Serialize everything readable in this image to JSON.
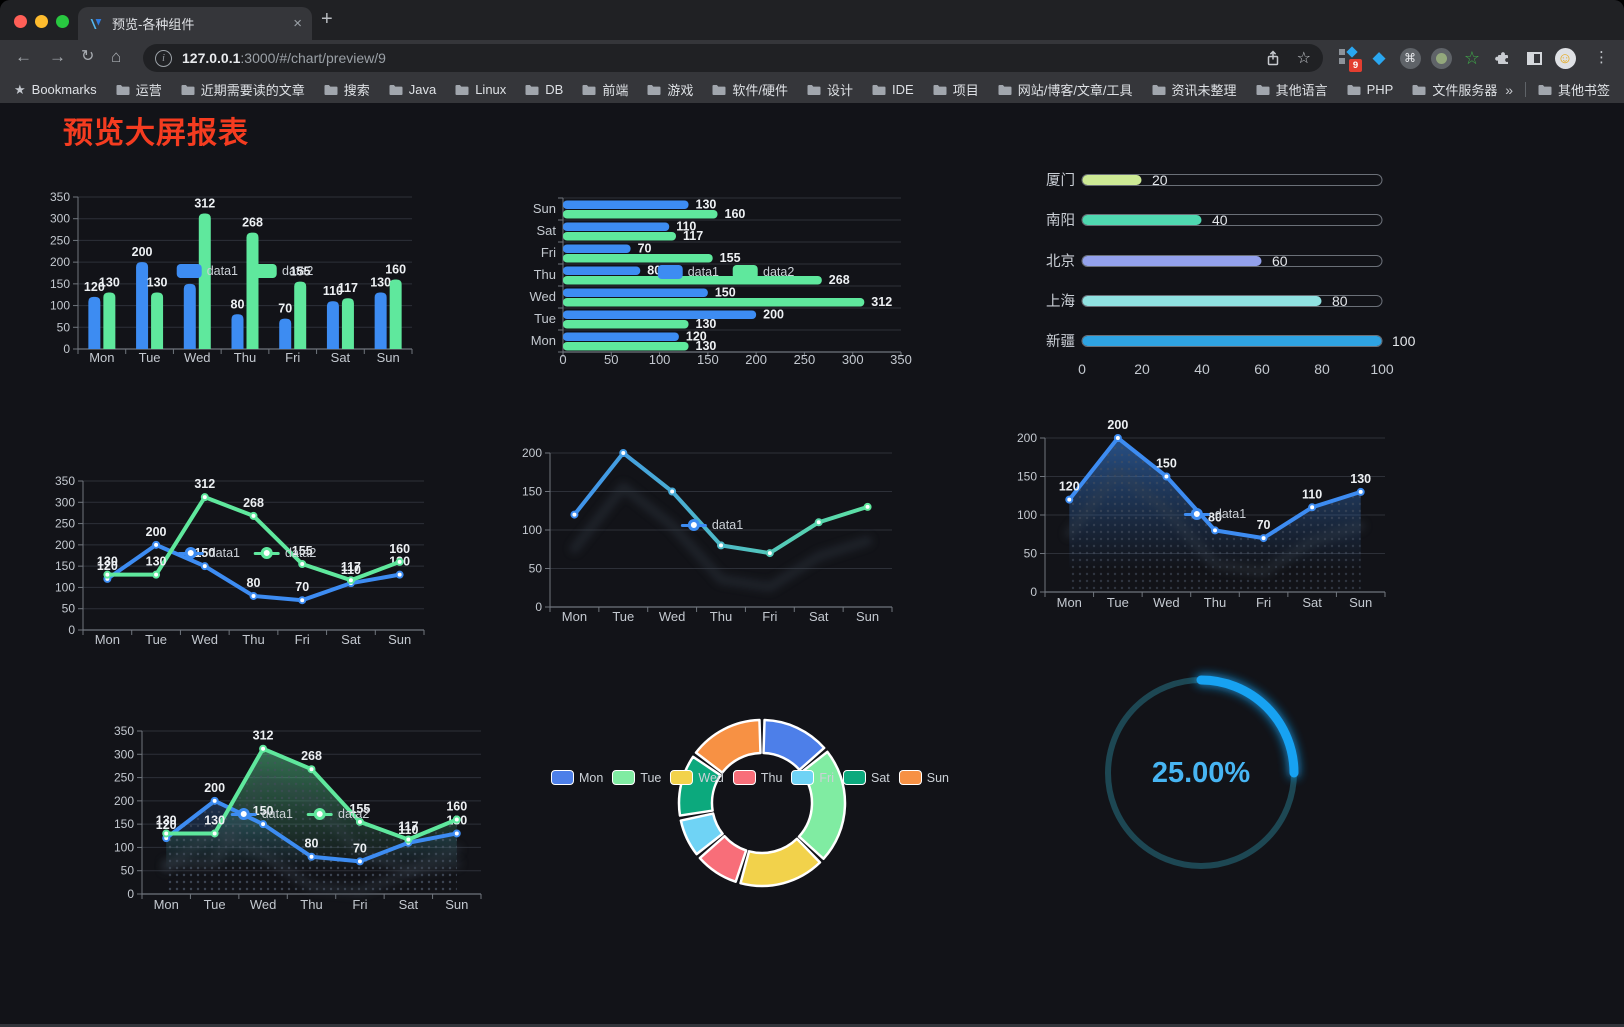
{
  "browser": {
    "tab": {
      "title": "预览-各种组件"
    },
    "icons": {
      "close_tab": "×",
      "new_tab": "+",
      "back": "←",
      "forward": "→",
      "reload": "↻",
      "home": "⌂",
      "info": "i",
      "star": "☆",
      "menu": "⋮",
      "gem": "◆",
      "command": "⌘",
      "smiley": "☺",
      "bookmarks_star": "★",
      "overflow": "»"
    },
    "address": {
      "host": "127.0.0.1",
      "path": ":3000/#/chart/preview/9"
    },
    "actions": {
      "extensions_badge": "9"
    },
    "bookmarks": {
      "label": "Bookmarks",
      "folders": [
        "运营",
        "近期需要读的文章",
        "搜索",
        "Java",
        "Linux",
        "DB",
        "前端",
        "游戏",
        "软件/硬件",
        "设计",
        "IDE",
        "项目",
        "网站/博客/文章/工具",
        "资讯未整理",
        "其他语言",
        "PHP",
        "文件服务器"
      ],
      "other_label": "其他书签"
    }
  },
  "page": {
    "title": "预览大屏报表",
    "title_color": "#f53c20",
    "background": "#121318"
  },
  "palette": {
    "data1": "#3d8cf2",
    "data2": "#5fe89d"
  },
  "chart_data": [
    {
      "id": "grouped-bar",
      "type": "bar",
      "legend_position": "top",
      "categories": [
        "Mon",
        "Tue",
        "Wed",
        "Thu",
        "Fri",
        "Sat",
        "Sun"
      ],
      "series": [
        {
          "name": "data1",
          "color": "#3d8cf2",
          "values": [
            120,
            200,
            150,
            80,
            70,
            110,
            130
          ]
        },
        {
          "name": "data2",
          "color": "#5fe89d",
          "values": [
            130,
            130,
            312,
            268,
            155,
            117,
            160
          ]
        }
      ],
      "ylim": [
        0,
        350
      ],
      "ytick": 50,
      "labels": true
    },
    {
      "id": "horizontal-bar",
      "type": "bar",
      "orientation": "horizontal",
      "legend_position": "top",
      "categories": [
        "Mon",
        "Tue",
        "Wed",
        "Thu",
        "Fri",
        "Sat",
        "Sun"
      ],
      "series": [
        {
          "name": "data1",
          "color": "#3d8cf2",
          "values": [
            120,
            200,
            150,
            80,
            70,
            110,
            130
          ]
        },
        {
          "name": "data2",
          "color": "#5fe89d",
          "values": [
            130,
            130,
            312,
            268,
            155,
            117,
            160
          ]
        }
      ],
      "xlim": [
        0,
        350
      ],
      "xtick": 50,
      "labels": true
    },
    {
      "id": "city-progress",
      "type": "bar",
      "subtype": "progress-pills",
      "rows": [
        {
          "label": "厦门",
          "value": 20,
          "color": "#cdea95"
        },
        {
          "label": "南阳",
          "value": 40,
          "color": "#4fd8b0"
        },
        {
          "label": "北京",
          "value": 60,
          "color": "#93a1ec"
        },
        {
          "label": "上海",
          "value": 80,
          "color": "#90e2e1"
        },
        {
          "label": "新疆",
          "value": 100,
          "color": "#2ea3e2"
        }
      ],
      "xlim": [
        0,
        100
      ],
      "xticks": [
        0,
        20,
        40,
        60,
        80,
        100
      ]
    },
    {
      "id": "two-line",
      "type": "line",
      "legend_position": "top",
      "categories": [
        "Mon",
        "Tue",
        "Wed",
        "Thu",
        "Fri",
        "Sat",
        "Sun"
      ],
      "series": [
        {
          "name": "data1",
          "color": "#3d8cf2",
          "values": [
            120,
            200,
            150,
            80,
            70,
            110,
            130
          ]
        },
        {
          "name": "data2",
          "color": "#5fe89d",
          "values": [
            130,
            130,
            312,
            268,
            155,
            117,
            160
          ]
        }
      ],
      "ylim": [
        0,
        350
      ],
      "ytick": 50,
      "labels": true
    },
    {
      "id": "gradient-line",
      "type": "line",
      "legend_position": "top",
      "categories": [
        "Mon",
        "Tue",
        "Wed",
        "Thu",
        "Fri",
        "Sat",
        "Sun"
      ],
      "series": [
        {
          "name": "data1",
          "color": "#3d8cf2",
          "gradient": [
            "#3d8cf2",
            "#5fe89d"
          ],
          "values": [
            120,
            200,
            150,
            80,
            70,
            110,
            130
          ]
        }
      ],
      "ylim": [
        0,
        200
      ],
      "ytick": 50,
      "labels": false,
      "shadow": true
    },
    {
      "id": "area-line",
      "type": "area",
      "legend_position": "top",
      "categories": [
        "Mon",
        "Tue",
        "Wed",
        "Thu",
        "Fri",
        "Sat",
        "Sun"
      ],
      "series": [
        {
          "name": "data1",
          "color": "#3d8cf2",
          "values": [
            120,
            200,
            150,
            80,
            70,
            110,
            130
          ]
        }
      ],
      "ylim": [
        0,
        200
      ],
      "ytick": 50,
      "labels": true,
      "shadow": true
    },
    {
      "id": "two-area",
      "type": "area",
      "legend_position": "top",
      "categories": [
        "Mon",
        "Tue",
        "Wed",
        "Thu",
        "Fri",
        "Sat",
        "Sun"
      ],
      "series": [
        {
          "name": "data1",
          "color": "#3d8cf2",
          "values": [
            120,
            200,
            150,
            80,
            70,
            110,
            130
          ]
        },
        {
          "name": "data2",
          "color": "#5fe89d",
          "values": [
            130,
            130,
            312,
            268,
            155,
            117,
            160
          ]
        }
      ],
      "ylim": [
        0,
        350
      ],
      "ytick": 50,
      "labels": true,
      "shadow": true
    },
    {
      "id": "weekday-donut",
      "type": "pie",
      "inner_radius_ratio": 0.6,
      "legend_position": "top",
      "items": [
        {
          "name": "Mon",
          "value": 120,
          "color": "#4d7fe9"
        },
        {
          "name": "Tue",
          "value": 200,
          "color": "#80eca2"
        },
        {
          "name": "Wed",
          "value": 150,
          "color": "#f2d24b"
        },
        {
          "name": "Thu",
          "value": 80,
          "color": "#f86e79"
        },
        {
          "name": "Fri",
          "value": 70,
          "color": "#6fd3f5"
        },
        {
          "name": "Sat",
          "value": 110,
          "color": "#0ca97d"
        },
        {
          "name": "Sun",
          "value": 130,
          "color": "#f79144"
        }
      ]
    },
    {
      "id": "progress-ring",
      "type": "gauge",
      "label": "25.00%",
      "percent": 25,
      "color": "#17a2f2",
      "track_color": "#1d4753",
      "text_color": "#47b5f3"
    }
  ]
}
